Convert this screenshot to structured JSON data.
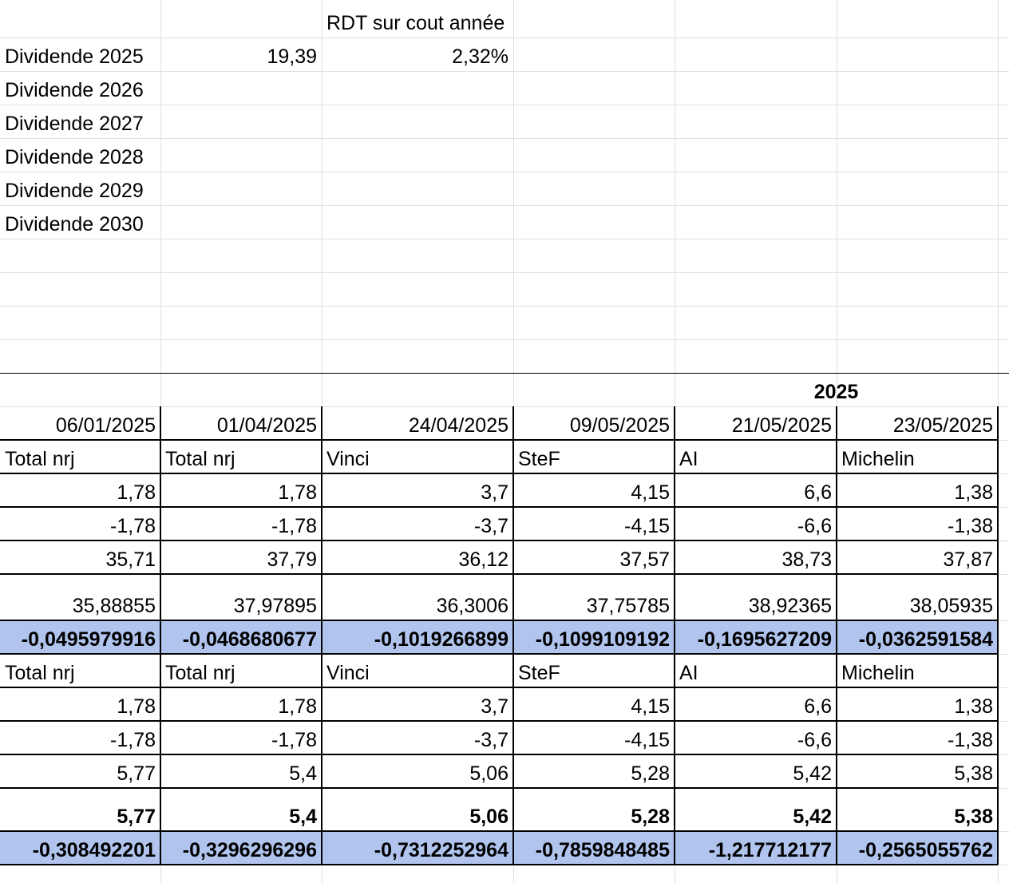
{
  "header": {
    "rdt_label": "RDT sur cout année",
    "year_label": "2025"
  },
  "dividends": [
    {
      "label": "Dividende 2025",
      "amount": "19,39",
      "rdt": "2,32%"
    },
    {
      "label": "Dividende 2026",
      "amount": "",
      "rdt": ""
    },
    {
      "label": "Dividende 2027",
      "amount": "",
      "rdt": ""
    },
    {
      "label": "Dividende 2028",
      "amount": "",
      "rdt": ""
    },
    {
      "label": "Dividende 2029",
      "amount": "",
      "rdt": ""
    },
    {
      "label": "Dividende 2030",
      "amount": "",
      "rdt": ""
    }
  ],
  "dates": [
    "06/01/2025",
    "01/04/2025",
    "24/04/2025",
    "09/05/2025",
    "21/05/2025",
    "23/05/2025"
  ],
  "block1": {
    "names": [
      "Total nrj",
      "Total nrj",
      "Vinci",
      "SteF",
      "AI",
      "Michelin"
    ],
    "rows": [
      [
        "1,78",
        "1,78",
        "3,7",
        "4,15",
        "6,6",
        "1,38"
      ],
      [
        "-1,78",
        "-1,78",
        "-3,7",
        "-4,15",
        "-6,6",
        "-1,38"
      ],
      [
        "35,71",
        "37,79",
        "36,12",
        "37,57",
        "38,73",
        "37,87"
      ],
      [
        "35,88855",
        "37,97895",
        "36,3006",
        "37,75785",
        "38,92365",
        "38,05935"
      ]
    ],
    "result": [
      "-0,0495979916",
      "-0,0468680677",
      "-0,1019266899",
      "-0,1099109192",
      "-0,1695627209",
      "-0,0362591584"
    ]
  },
  "block2": {
    "names": [
      "Total nrj",
      "Total nrj",
      "Vinci",
      "SteF",
      "AI",
      "Michelin"
    ],
    "rows": [
      [
        "1,78",
        "1,78",
        "3,7",
        "4,15",
        "6,6",
        "1,38"
      ],
      [
        "-1,78",
        "-1,78",
        "-3,7",
        "-4,15",
        "-6,6",
        "-1,38"
      ],
      [
        "5,77",
        "5,4",
        "5,06",
        "5,28",
        "5,42",
        "5,38"
      ],
      [
        "5,77",
        "5,4",
        "5,06",
        "5,28",
        "5,42",
        "5,38"
      ]
    ],
    "result": [
      "-0,308492201",
      "-0,3296296296",
      "-0,7312252964",
      "-0,7859848485",
      "-1,217712177",
      "-0,2565055762"
    ]
  },
  "colors": {
    "highlight": "#b0c4ee",
    "gridline": "#e0e0e0",
    "border": "#000000"
  }
}
